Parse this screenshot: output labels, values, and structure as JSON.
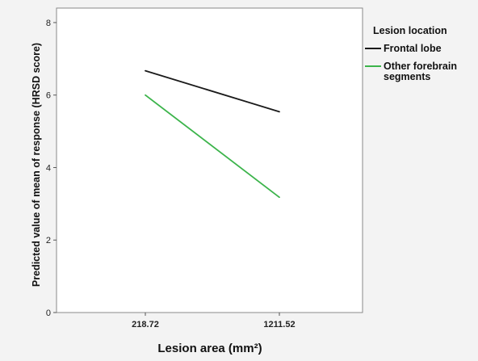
{
  "chart_data": {
    "type": "line",
    "xlabel": "Lesion area (mm²)",
    "ylabel": "Predicted value of mean of response (HRSD score)",
    "categories": [
      "218.72",
      "1211.52"
    ],
    "ylim": [
      0,
      8.4
    ],
    "yticks": [
      0,
      2,
      4,
      6,
      8
    ],
    "grid": false,
    "legend": {
      "title": "Lesion location",
      "placement": "right-outside-top"
    },
    "series": [
      {
        "name": "Frontal lobe",
        "color": "#1a1a1a",
        "values": [
          6.67,
          5.54
        ]
      },
      {
        "name": "Other forebrain segments",
        "color": "#3cb44b",
        "values": [
          6.0,
          3.18
        ]
      }
    ]
  }
}
